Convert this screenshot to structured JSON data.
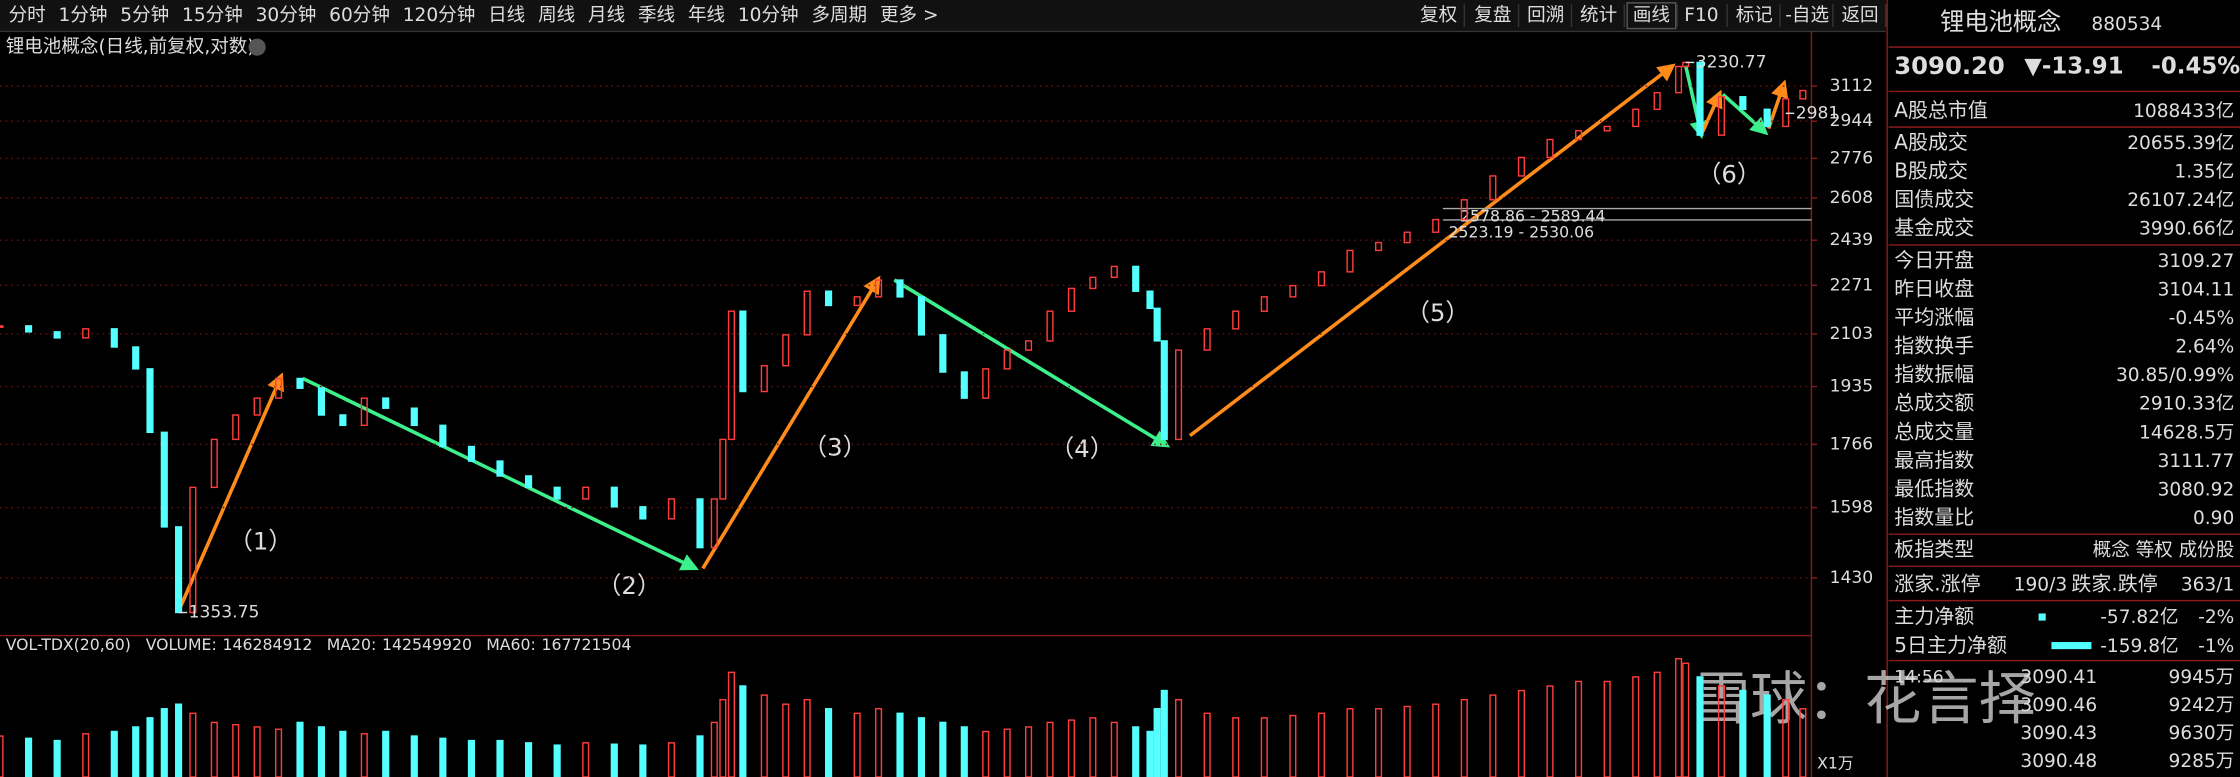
{
  "toolbar": {
    "periods": [
      "分时",
      "1分钟",
      "5分钟",
      "15分钟",
      "30分钟",
      "60分钟",
      "120分钟",
      "日线",
      "周线",
      "月线",
      "季线",
      "年线",
      "10分钟",
      "多周期",
      "更多 >"
    ],
    "active": 7,
    "tools": [
      "复权",
      "复盘",
      "回溯",
      "统计",
      "画线",
      "F10",
      "标记",
      "-自选",
      "返回"
    ],
    "active_tool": 4
  },
  "chart_data": [
    {
      "type": "candle",
      "title": "锂电池概念(日线,前复权,对数)",
      "up_color": "#ff3c3c",
      "down_color": "#54ffff",
      "log_scale": true,
      "grid": true,
      "x": [
        0,
        20,
        40,
        60,
        80,
        95,
        105,
        115,
        125,
        135,
        150,
        165,
        180,
        195,
        210,
        225,
        240,
        255,
        270,
        290,
        310,
        330,
        350,
        370,
        390,
        410,
        430,
        450,
        470,
        490,
        500,
        506,
        512,
        520,
        535,
        550,
        565,
        580,
        600,
        615,
        630,
        645,
        660,
        675,
        690,
        705,
        720,
        735,
        750,
        765,
        780,
        795,
        805,
        810,
        815,
        825,
        845,
        865,
        885,
        905,
        925,
        945,
        965,
        985,
        1005,
        1025,
        1045,
        1065,
        1085,
        1105,
        1125,
        1145,
        1160,
        1175,
        1180,
        1190,
        1205,
        1220,
        1237,
        1250,
        1262
      ],
      "values": [
        2130,
        2110,
        2090,
        2120,
        2060,
        1990,
        1800,
        1550,
        1353.75,
        1650,
        1780,
        1850,
        1900,
        1960,
        1930,
        1850,
        1820,
        1900,
        1870,
        1820,
        1760,
        1720,
        1680,
        1650,
        1620,
        1650,
        1600,
        1570,
        1620,
        1500,
        1620,
        1780,
        2180,
        1920,
        2000,
        2100,
        2250,
        2200,
        2230,
        2290,
        2230,
        2100,
        1980,
        1900,
        1990,
        2050,
        2080,
        2180,
        2260,
        2300,
        2340,
        2250,
        2190,
        2080,
        1780,
        2050,
        2120,
        2180,
        2230,
        2270,
        2320,
        2400,
        2430,
        2470,
        2520,
        2600,
        2700,
        2780,
        2860,
        2900,
        2920,
        3000,
        3080,
        3210,
        3230.77,
        2880,
        3060,
        3000,
        2920,
        3050,
        3090.2
      ],
      "xlim": [
        0,
        1268
      ],
      "ylim": [
        1320,
        3258
      ],
      "yticks": [
        3112,
        2944,
        2776,
        2608,
        2439,
        2271,
        2103,
        1935,
        1766,
        1598,
        1430
      ],
      "extreme_labels": [
        {
          "x": 1180,
          "value": 3230.77
        },
        {
          "x": 125,
          "value": 1353.75
        },
        {
          "x": 1250,
          "value": 2981
        }
      ],
      "range_labels": [
        "2578.86 - 2589.44",
        "2523.19 - 2530.06"
      ],
      "waves": [
        {
          "label": "（1）",
          "color": "#ff8c1a"
        },
        {
          "label": "（2）",
          "color": "#3cf08c"
        },
        {
          "label": "（3）",
          "color": "#ff8c1a"
        },
        {
          "label": "（4）",
          "color": "#3cf08c"
        },
        {
          "label": "（5）",
          "color": "#ff8c1a"
        },
        {
          "label": "（6）",
          "color": "#3cf08c"
        }
      ]
    },
    {
      "type": "volume",
      "title": "VOL-TDX(20,60)",
      "unit_label": "X1万",
      "indicators": [
        {
          "name": "VOLUME:",
          "value": 146284912,
          "color": "#cccccc"
        },
        {
          "name": "MA20:",
          "value": 142549920,
          "color": "#ffffff"
        },
        {
          "name": "MA60:",
          "value": 167721504,
          "color": "#ffff00"
        }
      ],
      "values": [
        9000,
        8500,
        8000,
        9500,
        10000,
        11000,
        13000,
        15000,
        16000,
        14000,
        12000,
        11500,
        11000,
        10500,
        12000,
        11000,
        10000,
        9500,
        10000,
        9000,
        8500,
        8000,
        8000,
        7500,
        7000,
        7500,
        7200,
        7000,
        7500,
        9000,
        12000,
        17000,
        23000,
        20000,
        18000,
        16000,
        17000,
        15000,
        14000,
        15000,
        14000,
        13000,
        12000,
        11000,
        10000,
        10500,
        11000,
        12000,
        12500,
        13000,
        12000,
        11000,
        10000,
        15000,
        19000,
        17000,
        14000,
        13000,
        13000,
        13500,
        14000,
        15000,
        15000,
        15500,
        16000,
        17000,
        18000,
        19000,
        20000,
        21000,
        21000,
        22000,
        23000,
        26000,
        25000,
        22000,
        20000,
        19000,
        18000,
        17000,
        15000
      ],
      "ylim": [
        0,
        27000
      ]
    }
  ],
  "watermark": "雪球：花言择",
  "panel": {
    "name": "锂电池概念",
    "code": "880534",
    "price": "3090.20",
    "change": "▼-13.91",
    "pct": "-0.45%",
    "rows": [
      {
        "label": "A股总市值",
        "value": "1088433亿",
        "color": "#ffffff"
      },
      {
        "label": "A股成交",
        "value": "20655.39亿",
        "color": "#ffd700"
      },
      {
        "label": "B股成交",
        "value": "1.35亿",
        "color": "#ffd700"
      },
      {
        "label": "国债成交",
        "value": "26107.24亿",
        "color": "#ffd700"
      },
      {
        "label": "基金成交",
        "value": "3990.66亿",
        "color": "#ffd700"
      },
      {
        "label": "今日开盘",
        "value": "3109.27",
        "color": "#ff4040"
      },
      {
        "label": "昨日收盘",
        "value": "3104.11",
        "color": "#ffffff"
      },
      {
        "label": "平均涨幅",
        "value": "-0.45%",
        "color": "#54ffff"
      },
      {
        "label": "指数换手",
        "value": "2.64%",
        "color": "#ffffff"
      },
      {
        "label": "指数振幅",
        "value": "30.85/0.99%",
        "color": "#ffffff"
      },
      {
        "label": "总成交额",
        "value": "2910.33亿",
        "color": "#ffd700"
      },
      {
        "label": "总成交量",
        "value": "14628.5万",
        "color": "#ffd700"
      },
      {
        "label": "最高指数",
        "value": "3111.77",
        "color": "#ff4040"
      },
      {
        "label": "最低指数",
        "value": "3080.92",
        "color": "#54ffff"
      },
      {
        "label": "指数量比",
        "value": "0.90",
        "color": "#ffffff"
      },
      {
        "label": "板指类型",
        "value": "概念 等权 成份股",
        "color": "#ffd700"
      }
    ],
    "breadth": {
      "up_label": "涨家.涨停",
      "up": "190/3",
      "down_label": "跌家.跌停",
      "down": "363/1"
    },
    "flows": [
      {
        "label": "主力净额",
        "value": "-57.82亿",
        "pct": "-2%"
      },
      {
        "label": "5日主力净额",
        "value": "-159.8亿",
        "pct": "-1%"
      }
    ],
    "ticks": [
      [
        "14:56",
        "3090.41",
        "9945万"
      ],
      [
        "",
        "3090.46",
        "9242万"
      ],
      [
        "",
        "3090.43",
        "9630万"
      ],
      [
        "",
        "3090.48",
        "9285万"
      ]
    ]
  }
}
